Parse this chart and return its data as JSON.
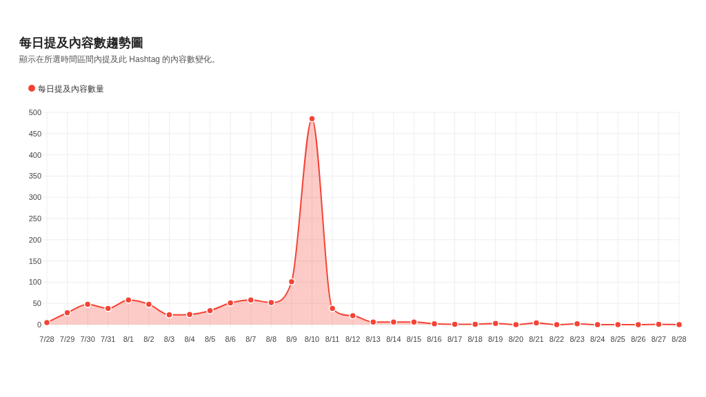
{
  "chart_data": {
    "type": "area",
    "title": "每日提及內容數趨勢圖",
    "subtitle": "顯示在所選時間區間內提及此 Hashtag 的內容數變化。",
    "categories": [
      "7/28",
      "7/29",
      "7/30",
      "7/31",
      "8/1",
      "8/2",
      "8/3",
      "8/4",
      "8/5",
      "8/6",
      "8/7",
      "8/8",
      "8/9",
      "8/10",
      "8/11",
      "8/12",
      "8/13",
      "8/14",
      "8/15",
      "8/16",
      "8/17",
      "8/18",
      "8/19",
      "8/20",
      "8/21",
      "8/22",
      "8/23",
      "8/24",
      "8/25",
      "8/26",
      "8/27",
      "8/28"
    ],
    "series": [
      {
        "name": "每日提及內容數量",
        "color": "#f44336",
        "values": [
          5,
          28,
          48,
          38,
          58,
          48,
          23,
          24,
          33,
          51,
          58,
          52,
          101,
          485,
          38,
          21,
          6,
          6,
          6,
          2,
          1,
          1,
          3,
          0,
          4,
          0,
          2,
          0,
          0,
          0,
          1,
          0
        ]
      }
    ],
    "ylim": [
      0,
      500
    ],
    "yticks": [
      0,
      50,
      100,
      150,
      200,
      250,
      300,
      350,
      400,
      450,
      500
    ],
    "grid": true,
    "legend": "top left",
    "marker": "circle"
  }
}
